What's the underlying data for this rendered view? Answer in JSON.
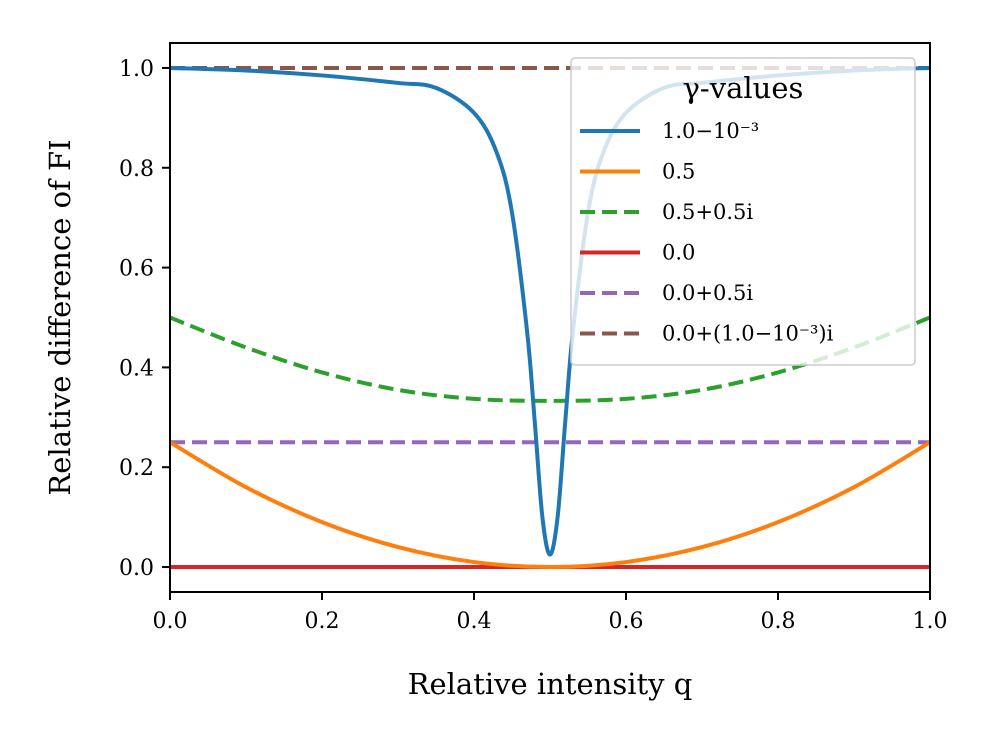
{
  "chart_data": {
    "type": "line",
    "title": "",
    "xlabel": "Relative intensity q",
    "ylabel": "Relative difference of FI",
    "xlim": [
      0.0,
      1.0
    ],
    "ylim": [
      -0.05,
      1.05
    ],
    "grid": false,
    "x_ticks": [
      "0.0",
      "0.2",
      "0.4",
      "0.6",
      "0.8",
      "1.0"
    ],
    "y_ticks": [
      "0.0",
      "0.2",
      "0.4",
      "0.6",
      "0.8",
      "1.0"
    ],
    "legend": {
      "title": "γ-values",
      "placement": "top-right"
    },
    "series": [
      {
        "name": "1.0−10⁻³",
        "color": "#1f77b4",
        "dash": "solid",
        "x": [
          0.0,
          0.1,
          0.2,
          0.3,
          0.35,
          0.4,
          0.43,
          0.45,
          0.47,
          0.48,
          0.49,
          0.5,
          0.51,
          0.52,
          0.53,
          0.55,
          0.57,
          0.6,
          0.65,
          0.7,
          0.8,
          0.9,
          1.0
        ],
        "y": [
          1.0,
          0.995,
          0.985,
          0.97,
          0.96,
          0.91,
          0.83,
          0.71,
          0.47,
          0.29,
          0.1,
          0.025,
          0.1,
          0.29,
          0.47,
          0.71,
          0.83,
          0.91,
          0.96,
          0.97,
          0.985,
          0.995,
          1.0
        ]
      },
      {
        "name": "0.5",
        "color": "#ff7f0e",
        "dash": "solid",
        "x": [
          0.0,
          0.1,
          0.2,
          0.3,
          0.4,
          0.5,
          0.6,
          0.7,
          0.8,
          0.9,
          1.0
        ],
        "y": [
          0.25,
          0.16,
          0.09,
          0.04,
          0.01,
          0.0,
          0.01,
          0.04,
          0.09,
          0.16,
          0.25
        ]
      },
      {
        "name": "0.5+0.5i",
        "color": "#2ca02c",
        "dash": "dashed",
        "x": [
          0.0,
          0.1,
          0.2,
          0.3,
          0.4,
          0.5,
          0.6,
          0.7,
          0.8,
          0.9,
          1.0
        ],
        "y": [
          0.5,
          0.44,
          0.39,
          0.355,
          0.337,
          0.333,
          0.337,
          0.355,
          0.39,
          0.44,
          0.5
        ]
      },
      {
        "name": "0.0",
        "color": "#d62728",
        "dash": "solid",
        "x": [
          0.0,
          1.0
        ],
        "y": [
          0.0,
          0.0
        ]
      },
      {
        "name": "0.0+0.5i",
        "color": "#9467bd",
        "dash": "dashed",
        "x": [
          0.0,
          1.0
        ],
        "y": [
          0.25,
          0.25
        ]
      },
      {
        "name": "0.0+(1.0−10⁻³)i",
        "color": "#8c564b",
        "dash": "dashed",
        "x": [
          0.0,
          1.0
        ],
        "y": [
          1.0,
          1.0
        ]
      }
    ]
  }
}
